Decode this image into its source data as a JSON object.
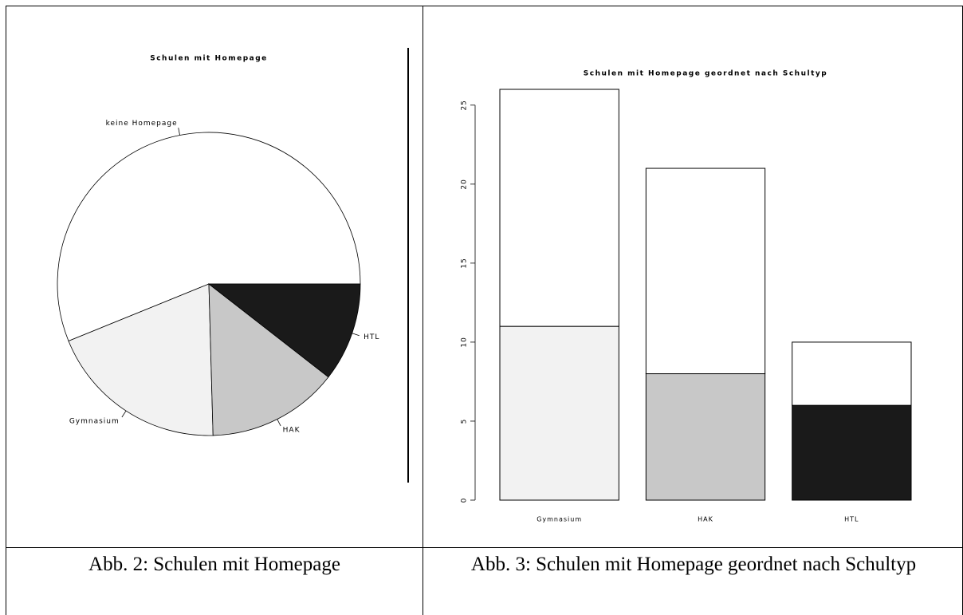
{
  "chart_data": [
    {
      "type": "pie",
      "title": "Schulen mit Homepage",
      "categories": [
        "keine Homepage",
        "Gymnasium",
        "HAK",
        "HTL"
      ],
      "values": [
        32,
        11,
        8,
        6
      ],
      "colors": [
        "#ffffff",
        "#f2f2f2",
        "#c8c8c8",
        "#1a1a1a"
      ]
    },
    {
      "type": "stacked-bar",
      "title": "Schulen mit Homepage geordnet nach Schultyp",
      "categories": [
        "Gymnasium",
        "HAK",
        "HTL"
      ],
      "series": [
        {
          "colors": [
            "#f2f2f2",
            "#c8c8c8",
            "#1a1a1a"
          ],
          "values": [
            11,
            8,
            6
          ]
        },
        {
          "color": "#ffffff",
          "values": [
            15,
            13,
            4
          ]
        }
      ],
      "ylim": [
        0,
        26
      ],
      "yticks": [
        0,
        5,
        10,
        15,
        20,
        25
      ]
    }
  ],
  "captions": [
    "Abb. 2: Schulen mit Homepage",
    "Abb. 3: Schulen mit Homepage geordnet nach Schultyp"
  ]
}
